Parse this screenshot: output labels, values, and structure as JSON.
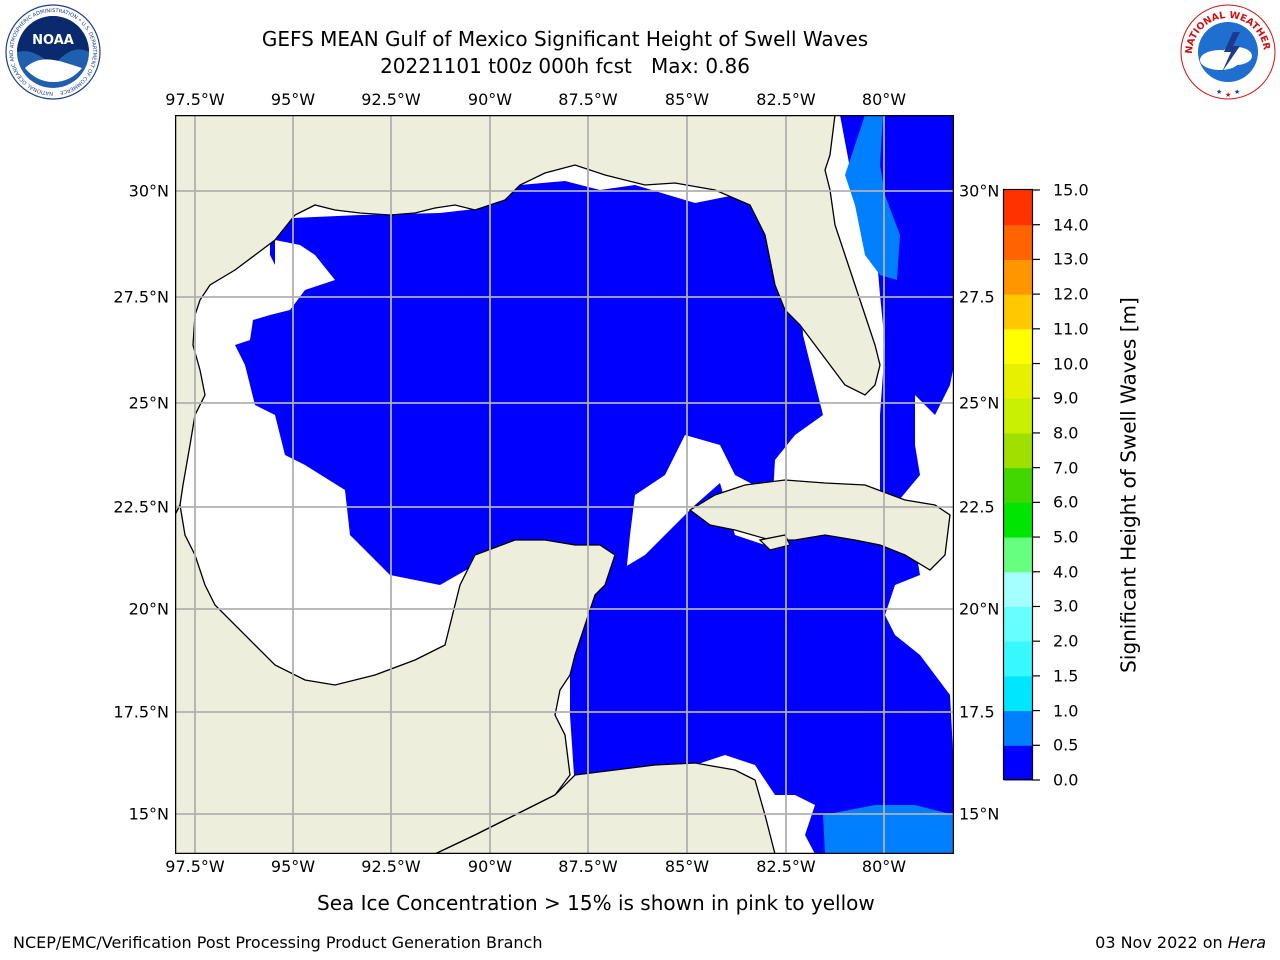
{
  "header": {
    "title_line1": "GEFS MEAN Gulf of Mexico Significant Height of Swell Waves",
    "title_line2": "20221101 t00z 000h fcst   Max: 0.86"
  },
  "logos": {
    "left_name": "NOAA",
    "left_ring_text": "NATIONAL OCEANIC AND ATMOSPHERIC ADMINISTRATION • U.S. DEPARTMENT OF COMMERCE",
    "right_ring_text": "NATIONAL WEATHER SERVICE"
  },
  "map": {
    "lon_labels": [
      "97.5°W",
      "95°W",
      "92.5°W",
      "90°W",
      "87.5°W",
      "85°W",
      "82.5°W",
      "80°W"
    ],
    "lat_labels_left": [
      "30°N",
      "27.5°N",
      "25°N",
      "22.5°N",
      "20°N",
      "17.5°N",
      "15°N"
    ],
    "lat_labels_right": [
      "30°N",
      "27.5",
      "25°N",
      "22.5",
      "20°N",
      "17.5",
      "15°N"
    ],
    "colors": {
      "land": "#eeeedc",
      "sea_0": "#0000ff",
      "sea_05": "#0080ff",
      "no_data": "#ffffff",
      "grid": "#b0b0b0",
      "coast": "#000000"
    }
  },
  "colorbar": {
    "labels": [
      "0.0",
      "0.5",
      "1.0",
      "1.5",
      "2.0",
      "3.0",
      "4.0",
      "5.0",
      "6.0",
      "7.0",
      "8.0",
      "9.0",
      "10.0",
      "11.0",
      "12.0",
      "13.0",
      "14.0",
      "15.0"
    ],
    "colors": [
      "#0000ff",
      "#0080ff",
      "#00e6ff",
      "#38f8ff",
      "#66ffff",
      "#a6ffff",
      "#66ff80",
      "#00e600",
      "#40d800",
      "#a0e000",
      "#c8f000",
      "#e6f000",
      "#ffff00",
      "#ffc800",
      "#ff9600",
      "#ff6400",
      "#ff3200",
      "#ff0000"
    ],
    "title": "Significant Height of Swell Waves [m]"
  },
  "footer": {
    "note": "Sea Ice Concentration > 15% is shown in pink to yellow",
    "left": "NCEP/EMC/Verification Post Processing Product Generation Branch",
    "right_date": "03 Nov 2022 on",
    "right_host": "Hera"
  }
}
